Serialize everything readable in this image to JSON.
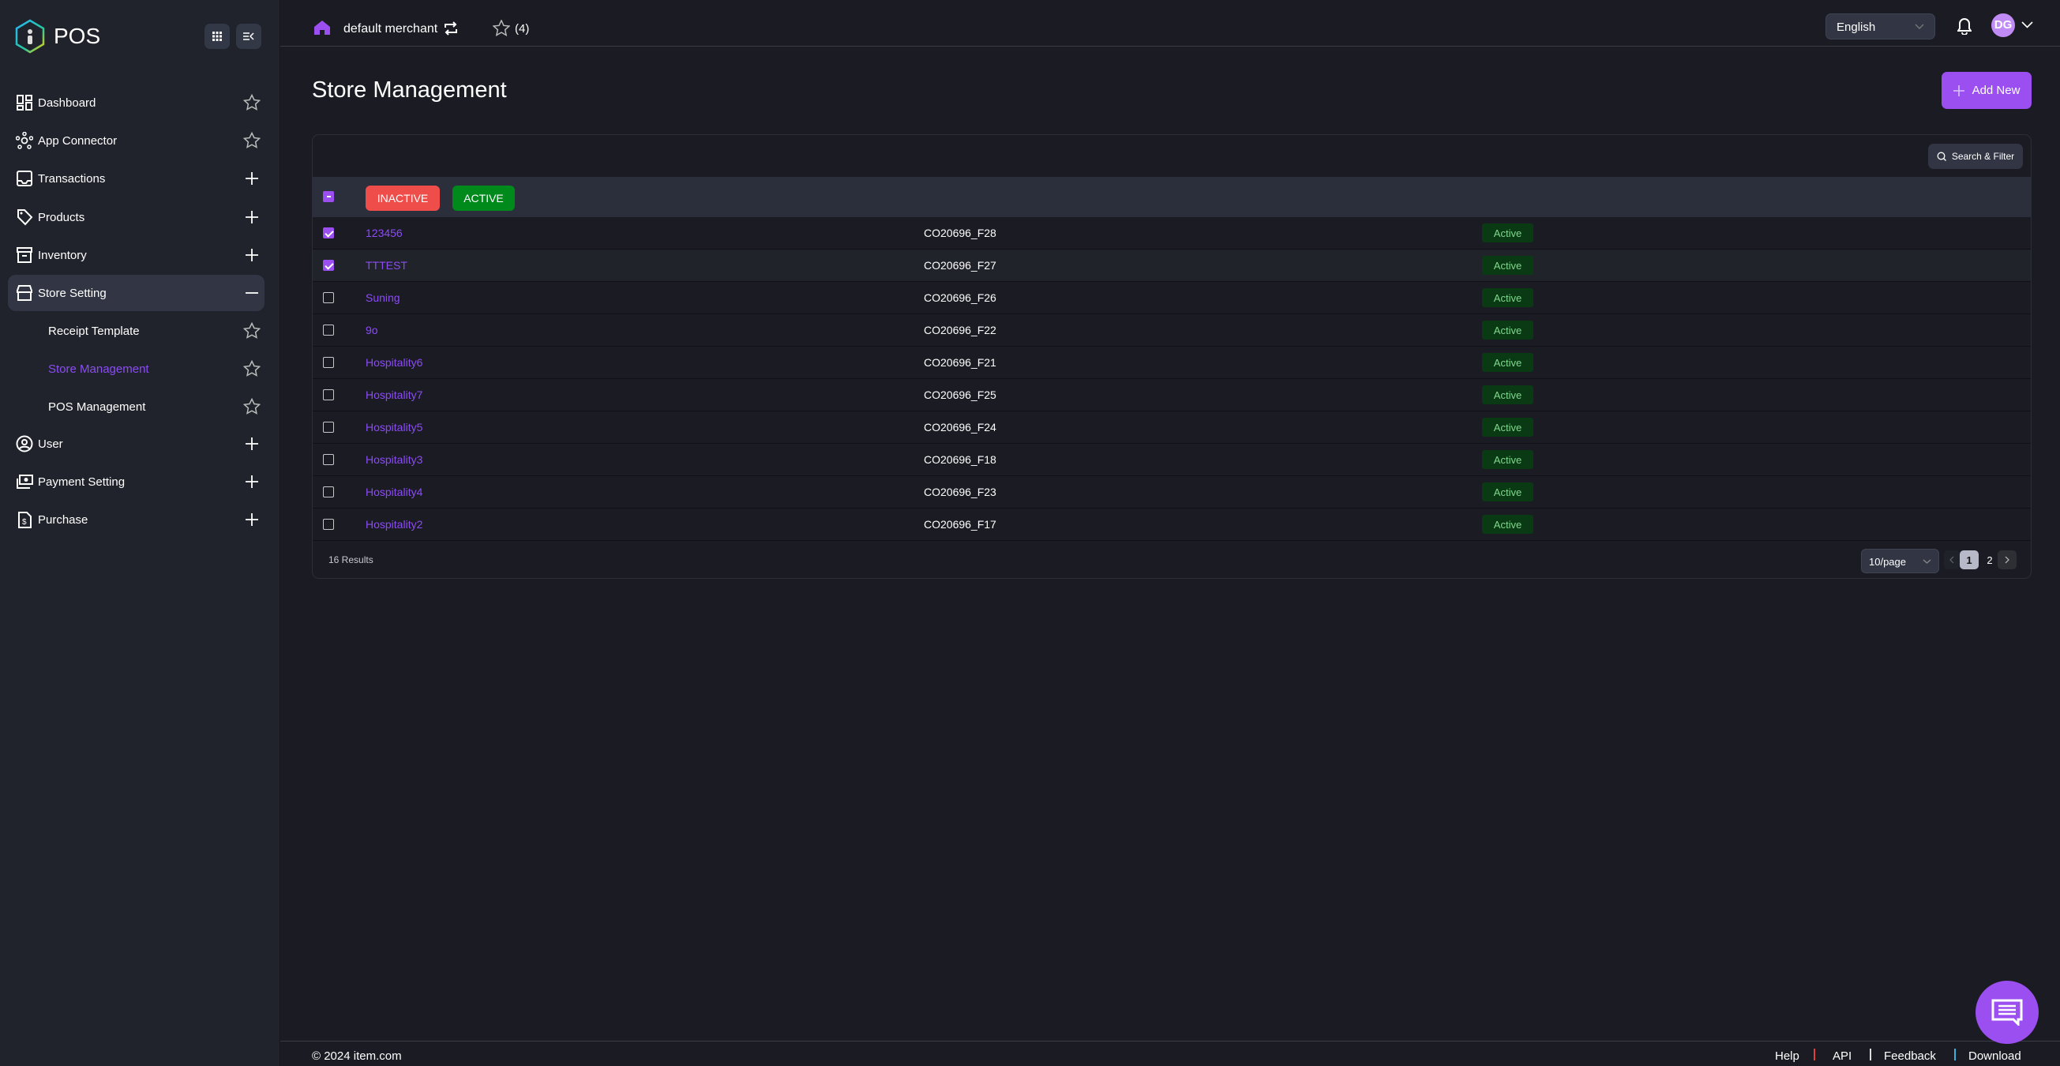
{
  "app": {
    "name": "POS"
  },
  "sidebar": {
    "items": [
      {
        "label": "Dashboard",
        "icon": "dashboard-icon",
        "action": "star"
      },
      {
        "label": "App Connector",
        "icon": "app-connector-icon",
        "action": "star"
      },
      {
        "label": "Transactions",
        "icon": "inbox-icon",
        "action": "plus"
      },
      {
        "label": "Products",
        "icon": "tag-icon",
        "action": "plus"
      },
      {
        "label": "Inventory",
        "icon": "archive-icon",
        "action": "plus"
      },
      {
        "label": "Store Setting",
        "icon": "store-icon",
        "action": "minus",
        "expanded": true
      },
      {
        "label": "Receipt Template",
        "sub": true,
        "action": "star"
      },
      {
        "label": "Store Management",
        "sub": true,
        "action": "star",
        "current": true
      },
      {
        "label": "POS Management",
        "sub": true,
        "action": "star"
      },
      {
        "label": "User",
        "icon": "user-icon",
        "action": "plus"
      },
      {
        "label": "Payment Setting",
        "icon": "payment-icon",
        "action": "plus"
      },
      {
        "label": "Purchase",
        "icon": "purchase-icon",
        "action": "plus"
      }
    ]
  },
  "header": {
    "merchant": "default merchant",
    "favorites_count": "(4)",
    "language": "English",
    "avatar_initials": "DG"
  },
  "page": {
    "title": "Store Management",
    "add_label": "Add New",
    "search_label": "Search & Filter"
  },
  "bulk": {
    "inactive_label": "INACTIVE",
    "active_label": "ACTIVE"
  },
  "table": {
    "rows": [
      {
        "name": "123456",
        "code": "CO20696_F28",
        "status": "Active",
        "checked": true
      },
      {
        "name": "TTTEST",
        "code": "CO20696_F27",
        "status": "Active",
        "checked": true
      },
      {
        "name": "Suning",
        "code": "CO20696_F26",
        "status": "Active",
        "checked": false
      },
      {
        "name": "9o",
        "code": "CO20696_F22",
        "status": "Active",
        "checked": false
      },
      {
        "name": "Hospitality6",
        "code": "CO20696_F21",
        "status": "Active",
        "checked": false
      },
      {
        "name": "Hospitality7",
        "code": "CO20696_F25",
        "status": "Active",
        "checked": false
      },
      {
        "name": "Hospitality5",
        "code": "CO20696_F24",
        "status": "Active",
        "checked": false
      },
      {
        "name": "Hospitality3",
        "code": "CO20696_F18",
        "status": "Active",
        "checked": false
      },
      {
        "name": "Hospitality4",
        "code": "CO20696_F23",
        "status": "Active",
        "checked": false
      },
      {
        "name": "Hospitality2",
        "code": "CO20696_F17",
        "status": "Active",
        "checked": false
      }
    ],
    "results": "16 Results",
    "page_size": "10/page",
    "pages": [
      "1",
      "2"
    ],
    "current_page": "1"
  },
  "footer": {
    "copyright": "© 2024 item.com",
    "links": [
      "Help",
      "API",
      "Feedback",
      "Download"
    ]
  },
  "colors": {
    "accent": "#9b4ff0",
    "inactive": "#ef4d4a",
    "active": "#018a1c"
  }
}
